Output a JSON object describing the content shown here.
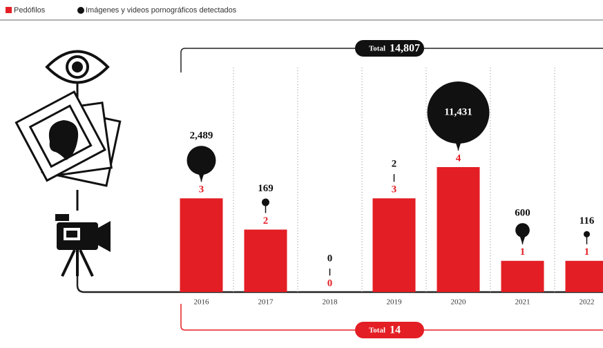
{
  "chart_data": {
    "type": "bar",
    "categories": [
      "2016",
      "2017",
      "2018",
      "2019",
      "2020",
      "2021",
      "2022"
    ],
    "series": [
      {
        "name": "Pedófilos",
        "type": "bar",
        "color": "#e31e24",
        "values": [
          3,
          2,
          0,
          3,
          4,
          1,
          1
        ]
      },
      {
        "name": "Imágenes y videos pornográficos detectados",
        "type": "bubble",
        "color": "#111111",
        "values": [
          2489,
          169,
          0,
          2,
          11431,
          600,
          116
        ],
        "value_labels": [
          "2,489",
          "169",
          "0",
          "2",
          "11,431",
          "600",
          "116"
        ]
      }
    ],
    "ylim": [
      0,
      4
    ],
    "totals": [
      {
        "name": "Total",
        "value": 14807,
        "value_label": "14,807",
        "color": "#111111"
      },
      {
        "name": "Total",
        "value": 14,
        "color": "#e31e24"
      }
    ]
  }
}
